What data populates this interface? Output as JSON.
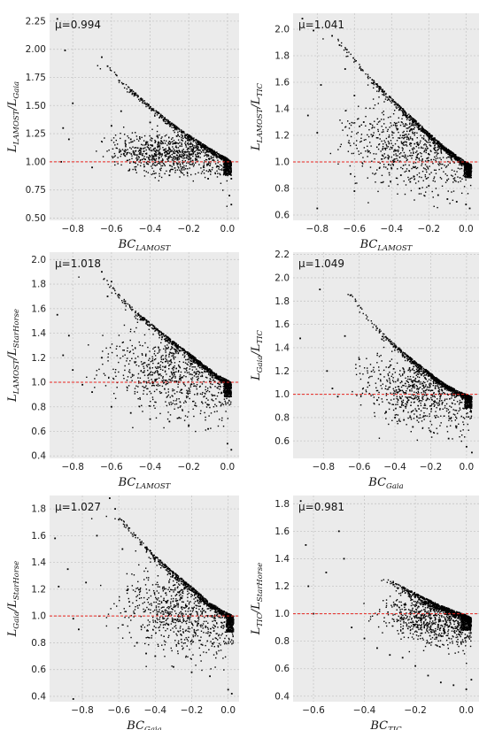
{
  "chart_data": [
    {
      "type": "scatter",
      "mean_label": "μ=0.994",
      "xlabel": {
        "base": "BC",
        "sub": "LAMOST"
      },
      "ylabel": {
        "num": "L",
        "num_sub": "LAMOST",
        "den": "L",
        "den_sub": "Gaia"
      },
      "xlim": [
        -0.92,
        0.06
      ],
      "ylim": [
        0.48,
        2.32
      ],
      "xticks": [
        -0.8,
        -0.6,
        -0.4,
        -0.2,
        0.0
      ],
      "xtick_labels": [
        "−0.8",
        "−0.6",
        "−0.4",
        "−0.2",
        "0.0"
      ],
      "yticks": [
        0.5,
        0.75,
        1.0,
        1.25,
        1.5,
        1.75,
        2.0,
        2.25
      ],
      "ytick_labels": [
        "0.50",
        "0.75",
        "1.00",
        "1.25",
        "1.50",
        "1.75",
        "2.00",
        "2.25"
      ],
      "reference_line": 1.0,
      "grid": true,
      "points": [
        [
          -0.88,
          2.27
        ],
        [
          -0.84,
          1.99
        ],
        [
          -0.8,
          1.52
        ],
        [
          -0.85,
          1.3
        ],
        [
          -0.82,
          1.2
        ],
        [
          -0.86,
          1.0
        ],
        [
          -0.65,
          1.93
        ],
        [
          -0.62,
          1.85
        ],
        [
          -0.6,
          1.32
        ],
        [
          -0.55,
          1.45
        ],
        [
          -0.5,
          1.2
        ],
        [
          -0.45,
          1.12
        ],
        [
          -0.4,
          1.35
        ],
        [
          -0.35,
          1.08
        ],
        [
          -0.3,
          1.18
        ],
        [
          -0.25,
          1.1
        ],
        [
          -0.2,
          1.02
        ],
        [
          -0.15,
          1.05
        ],
        [
          -0.1,
          0.98
        ],
        [
          -0.05,
          0.96
        ],
        [
          0.0,
          0.92
        ],
        [
          0.02,
          0.85
        ],
        [
          0.01,
          0.7
        ],
        [
          0.02,
          0.62
        ],
        [
          -0.7,
          0.95
        ],
        [
          -0.3,
          0.88
        ],
        [
          -0.1,
          0.85
        ]
      ],
      "envelope": [
        [
          -0.62,
          1.86
        ],
        [
          -0.5,
          1.65
        ],
        [
          -0.4,
          1.5
        ],
        [
          -0.3,
          1.36
        ],
        [
          -0.2,
          1.24
        ],
        [
          -0.1,
          1.13
        ],
        [
          0.0,
          1.03
        ],
        [
          0.02,
          1.0
        ]
      ],
      "cloud": {
        "x_center": -0.33,
        "y_center": 1.08,
        "spread_x": 0.22,
        "spread_y": 0.12
      }
    },
    {
      "type": "scatter",
      "mean_label": "μ=1.041",
      "xlabel": {
        "base": "BC",
        "sub": "LAMOST"
      },
      "ylabel": {
        "num": "L",
        "num_sub": "LAMOST",
        "den": "L",
        "den_sub": "TIC"
      },
      "xlim": [
        -0.93,
        0.07
      ],
      "ylim": [
        0.56,
        2.12
      ],
      "xticks": [
        -0.8,
        -0.6,
        -0.4,
        -0.2,
        0.0
      ],
      "xtick_labels": [
        "−0.8",
        "−0.6",
        "−0.4",
        "−0.2",
        "0.0"
      ],
      "yticks": [
        0.6,
        0.8,
        1.0,
        1.2,
        1.4,
        1.6,
        1.8,
        2.0
      ],
      "ytick_labels": [
        "0.6",
        "0.8",
        "1.0",
        "1.2",
        "1.4",
        "1.6",
        "1.8",
        "2.0"
      ],
      "reference_line": 1.0,
      "grid": true,
      "points": [
        [
          -0.88,
          2.08
        ],
        [
          -0.82,
          1.99
        ],
        [
          -0.78,
          1.58
        ],
        [
          -0.85,
          1.35
        ],
        [
          -0.8,
          1.22
        ],
        [
          -0.72,
          1.95
        ],
        [
          -0.68,
          1.88
        ],
        [
          -0.65,
          1.7
        ],
        [
          -0.6,
          1.5
        ],
        [
          -0.55,
          1.3
        ],
        [
          -0.5,
          1.2
        ],
        [
          -0.45,
          1.05
        ],
        [
          -0.4,
          0.95
        ],
        [
          -0.35,
          0.9
        ],
        [
          -0.3,
          0.85
        ],
        [
          -0.25,
          0.8
        ],
        [
          -0.2,
          0.82
        ],
        [
          -0.15,
          0.75
        ],
        [
          -0.1,
          0.72
        ],
        [
          -0.05,
          0.7
        ],
        [
          0.0,
          0.68
        ],
        [
          0.02,
          0.65
        ],
        [
          -0.8,
          0.65
        ],
        [
          -0.6,
          0.78
        ]
      ],
      "envelope": [
        [
          -0.7,
          1.95
        ],
        [
          -0.6,
          1.78
        ],
        [
          -0.5,
          1.62
        ],
        [
          -0.4,
          1.48
        ],
        [
          -0.3,
          1.35
        ],
        [
          -0.2,
          1.22
        ],
        [
          -0.1,
          1.1
        ],
        [
          0.0,
          1.0
        ],
        [
          0.03,
          0.98
        ]
      ],
      "cloud": {
        "x_center": -0.3,
        "y_center": 1.12,
        "spread_x": 0.25,
        "spread_y": 0.2
      }
    },
    {
      "type": "scatter",
      "mean_label": "μ=1.018",
      "xlabel": {
        "base": "BC",
        "sub": "LAMOST"
      },
      "ylabel": {
        "num": "L",
        "num_sub": "LAMOST",
        "den": "L",
        "den_sub": "StarHorse"
      },
      "xlim": [
        -0.92,
        0.06
      ],
      "ylim": [
        0.38,
        2.06
      ],
      "xticks": [
        -0.8,
        -0.6,
        -0.4,
        -0.2,
        0.0
      ],
      "xtick_labels": [
        "−0.8",
        "−0.6",
        "−0.4",
        "−0.2",
        "0.0"
      ],
      "yticks": [
        0.4,
        0.6,
        0.8,
        1.0,
        1.2,
        1.4,
        1.6,
        1.8,
        2.0
      ],
      "ytick_labels": [
        "0.4",
        "0.6",
        "0.8",
        "1.0",
        "1.2",
        "1.4",
        "1.6",
        "1.8",
        "2.0"
      ],
      "reference_line": 1.0,
      "grid": true,
      "points": [
        [
          -0.88,
          1.55
        ],
        [
          -0.82,
          1.38
        ],
        [
          -0.85,
          1.22
        ],
        [
          -0.8,
          1.1
        ],
        [
          -0.75,
          0.98
        ],
        [
          -0.7,
          0.92
        ],
        [
          -0.65,
          1.2
        ],
        [
          -0.6,
          0.8
        ],
        [
          -0.5,
          0.75
        ],
        [
          -0.4,
          0.7
        ],
        [
          -0.3,
          0.68
        ],
        [
          -0.2,
          0.65
        ],
        [
          -0.1,
          0.62
        ],
        [
          0.0,
          0.5
        ],
        [
          0.02,
          0.45
        ],
        [
          -0.65,
          1.9
        ],
        [
          -0.6,
          1.82
        ],
        [
          -0.62,
          1.7
        ]
      ],
      "envelope": [
        [
          -0.65,
          1.88
        ],
        [
          -0.55,
          1.7
        ],
        [
          -0.45,
          1.55
        ],
        [
          -0.35,
          1.42
        ],
        [
          -0.25,
          1.3
        ],
        [
          -0.15,
          1.18
        ],
        [
          -0.05,
          1.06
        ],
        [
          0.02,
          1.0
        ]
      ],
      "cloud": {
        "x_center": -0.3,
        "y_center": 1.1,
        "spread_x": 0.25,
        "spread_y": 0.22
      }
    },
    {
      "type": "scatter",
      "mean_label": "μ=1.049",
      "xlabel": {
        "base": "BC",
        "sub": "Gaia"
      },
      "ylabel": {
        "num": "L",
        "num_sub": "Gaia",
        "den": "L",
        "den_sub": "TIC"
      },
      "xlim": [
        -0.97,
        0.07
      ],
      "ylim": [
        0.45,
        2.22
      ],
      "xticks": [
        -0.8,
        -0.6,
        -0.4,
        -0.2,
        0.0
      ],
      "xtick_labels": [
        "−0.8",
        "−0.6",
        "−0.4",
        "−0.2",
        "0.0"
      ],
      "yticks": [
        0.6,
        0.8,
        1.0,
        1.2,
        1.4,
        1.6,
        1.8,
        2.0,
        2.2
      ],
      "ytick_labels": [
        "0.6",
        "0.8",
        "1.0",
        "1.2",
        "1.4",
        "1.6",
        "1.8",
        "2.0",
        "2.2"
      ],
      "reference_line": 1.0,
      "grid": true,
      "points": [
        [
          -0.93,
          1.48
        ],
        [
          -0.82,
          1.9
        ],
        [
          -0.78,
          1.2
        ],
        [
          -0.75,
          1.05
        ],
        [
          -0.72,
          0.98
        ],
        [
          -0.68,
          1.5
        ],
        [
          -0.65,
          1.85
        ],
        [
          -0.62,
          1.8
        ],
        [
          -0.6,
          1.3
        ],
        [
          -0.55,
          1.1
        ],
        [
          -0.5,
          0.95
        ],
        [
          -0.45,
          0.85
        ],
        [
          -0.4,
          0.8
        ],
        [
          -0.35,
          0.78
        ],
        [
          -0.3,
          0.72
        ],
        [
          -0.2,
          0.68
        ],
        [
          -0.1,
          0.62
        ],
        [
          0.0,
          0.55
        ],
        [
          0.03,
          0.5
        ]
      ],
      "envelope": [
        [
          -0.65,
          1.88
        ],
        [
          -0.55,
          1.66
        ],
        [
          -0.45,
          1.5
        ],
        [
          -0.35,
          1.36
        ],
        [
          -0.25,
          1.24
        ],
        [
          -0.15,
          1.12
        ],
        [
          -0.05,
          1.03
        ],
        [
          0.03,
          0.98
        ]
      ],
      "cloud": {
        "x_center": -0.25,
        "y_center": 1.05,
        "spread_x": 0.22,
        "spread_y": 0.2
      }
    },
    {
      "type": "scatter",
      "mean_label": "μ=1.027",
      "xlabel": {
        "base": "BC",
        "sub": "Gaia"
      },
      "ylabel": {
        "num": "L",
        "num_sub": "Gaia",
        "den": "L",
        "den_sub": "StarHorse"
      },
      "xlim": [
        -0.98,
        0.06
      ],
      "ylim": [
        0.36,
        1.9
      ],
      "xticks": [
        -0.8,
        -0.6,
        -0.4,
        -0.2,
        0.0
      ],
      "xtick_labels": [
        "−0.8",
        "−0.6",
        "−0.4",
        "−0.2",
        "0.0"
      ],
      "yticks": [
        0.4,
        0.6,
        0.8,
        1.0,
        1.2,
        1.4,
        1.6,
        1.8
      ],
      "ytick_labels": [
        "0.4",
        "0.6",
        "0.8",
        "1.0",
        "1.2",
        "1.4",
        "1.6",
        "1.8"
      ],
      "reference_line": 1.0,
      "grid": true,
      "points": [
        [
          -0.95,
          1.58
        ],
        [
          -0.93,
          1.22
        ],
        [
          -0.88,
          1.35
        ],
        [
          -0.85,
          0.98
        ],
        [
          -0.82,
          0.9
        ],
        [
          -0.78,
          1.25
        ],
        [
          -0.72,
          1.6
        ],
        [
          -0.65,
          1.88
        ],
        [
          -0.62,
          1.8
        ],
        [
          -0.6,
          1.72
        ],
        [
          -0.58,
          1.5
        ],
        [
          -0.55,
          1.2
        ],
        [
          -0.5,
          0.8
        ],
        [
          -0.45,
          0.72
        ],
        [
          -0.4,
          0.7
        ],
        [
          -0.3,
          0.62
        ],
        [
          -0.2,
          0.58
        ],
        [
          -0.1,
          0.55
        ],
        [
          0.0,
          0.45
        ],
        [
          0.02,
          0.42
        ],
        [
          -0.85,
          0.38
        ]
      ],
      "envelope": [
        [
          -0.6,
          1.75
        ],
        [
          -0.5,
          1.6
        ],
        [
          -0.4,
          1.45
        ],
        [
          -0.3,
          1.33
        ],
        [
          -0.2,
          1.22
        ],
        [
          -0.1,
          1.1
        ],
        [
          0.0,
          1.02
        ],
        [
          0.03,
          1.0
        ]
      ],
      "cloud": {
        "x_center": -0.28,
        "y_center": 1.05,
        "spread_x": 0.25,
        "spread_y": 0.2
      }
    },
    {
      "type": "scatter",
      "mean_label": "μ=0.981",
      "xlabel": {
        "base": "BC",
        "sub": "TIC"
      },
      "ylabel": {
        "num": "L",
        "num_sub": "TIC",
        "den": "L",
        "den_sub": "StarHorse"
      },
      "xlim": [
        -0.68,
        0.05
      ],
      "ylim": [
        0.36,
        1.86
      ],
      "xticks": [
        -0.6,
        -0.4,
        -0.2,
        0.0
      ],
      "xtick_labels": [
        "−0.6",
        "−0.4",
        "−0.2",
        "0.0"
      ],
      "yticks": [
        0.4,
        0.6,
        0.8,
        1.0,
        1.2,
        1.4,
        1.6,
        1.8
      ],
      "ytick_labels": [
        "0.4",
        "0.6",
        "0.8",
        "1.0",
        "1.2",
        "1.4",
        "1.6",
        "1.8"
      ],
      "reference_line": 1.0,
      "grid": true,
      "points": [
        [
          -0.65,
          1.82
        ],
        [
          -0.63,
          1.5
        ],
        [
          -0.62,
          1.2
        ],
        [
          -0.6,
          1.0
        ],
        [
          -0.55,
          1.3
        ],
        [
          -0.5,
          1.6
        ],
        [
          -0.48,
          1.4
        ],
        [
          -0.45,
          0.9
        ],
        [
          -0.4,
          0.82
        ],
        [
          -0.35,
          0.75
        ],
        [
          -0.3,
          0.7
        ],
        [
          -0.25,
          0.68
        ],
        [
          -0.2,
          0.62
        ],
        [
          -0.15,
          0.55
        ],
        [
          -0.1,
          0.5
        ],
        [
          -0.05,
          0.48
        ],
        [
          0.0,
          0.45
        ],
        [
          0.02,
          0.52
        ]
      ],
      "envelope": [
        [
          -0.3,
          1.25
        ],
        [
          -0.2,
          1.15
        ],
        [
          -0.1,
          1.06
        ],
        [
          0.0,
          0.99
        ],
        [
          0.02,
          0.97
        ]
      ],
      "cloud": {
        "x_center": -0.15,
        "y_center": 0.98,
        "spread_x": 0.15,
        "spread_y": 0.12
      }
    }
  ],
  "colors": {
    "panel_background": "#ebebeb",
    "grid": "#c8c8c8",
    "points": "#000000",
    "reference_line": "#e8251f"
  }
}
